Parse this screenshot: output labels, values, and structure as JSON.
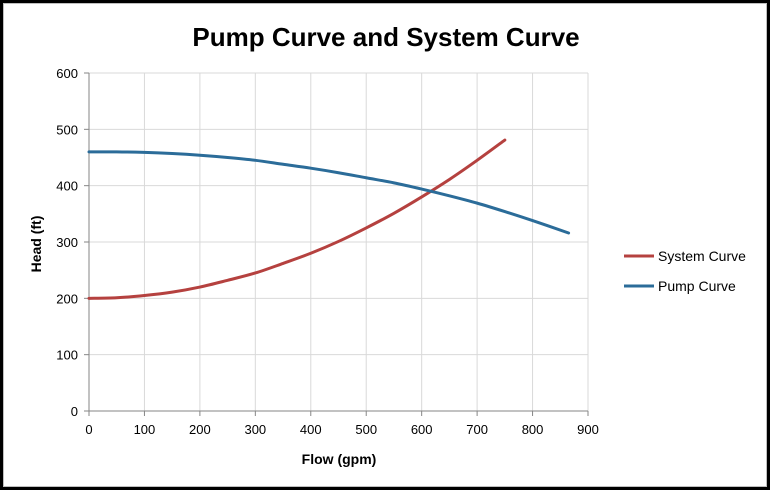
{
  "chart_data": {
    "type": "line",
    "title": "Pump Curve and System Curve",
    "xlabel": "Flow (gpm)",
    "ylabel": "Head (ft)",
    "xlim": [
      0,
      900
    ],
    "ylim": [
      0,
      600
    ],
    "xticks": [
      0,
      100,
      200,
      300,
      400,
      500,
      600,
      700,
      800,
      900
    ],
    "yticks": [
      0,
      100,
      200,
      300,
      400,
      500,
      600
    ],
    "grid": true,
    "legend_position": "right",
    "series": [
      {
        "name": "System Curve",
        "color": "#b5413f",
        "x": [
          0,
          50,
          100,
          150,
          200,
          250,
          300,
          350,
          400,
          450,
          500,
          550,
          600,
          650,
          700,
          750
        ],
        "y": [
          200,
          201,
          205,
          211,
          220,
          232,
          245,
          262,
          280,
          301,
          325,
          351,
          380,
          411,
          445,
          481
        ]
      },
      {
        "name": "Pump Curve",
        "color": "#2b6c99",
        "x": [
          0,
          50,
          100,
          150,
          200,
          250,
          300,
          350,
          400,
          450,
          500,
          550,
          600,
          650,
          700,
          750,
          800,
          865
        ],
        "y": [
          460,
          460,
          459,
          457,
          454,
          450,
          445,
          438,
          431,
          423,
          414,
          405,
          394,
          382,
          369,
          354,
          338,
          316
        ]
      }
    ]
  }
}
